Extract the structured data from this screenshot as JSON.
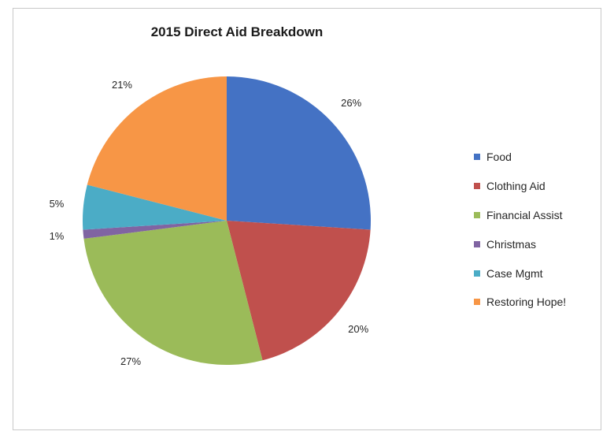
{
  "chart_data": {
    "type": "pie",
    "title": "2015 Direct Aid Breakdown",
    "categories": [
      "Food",
      "Clothing Aid",
      "Financial Assist",
      "Christmas",
      "Case Mgmt",
      "Restoring Hope!"
    ],
    "values": [
      26,
      20,
      27,
      1,
      5,
      21
    ],
    "labels": [
      "26%",
      "20%",
      "27%",
      "1%",
      "5%",
      "21%"
    ],
    "colors": [
      "#4472C4",
      "#C0504D",
      "#9BBB59",
      "#8064A2",
      "#4BACC6",
      "#F79646"
    ],
    "legend_position": "right"
  }
}
